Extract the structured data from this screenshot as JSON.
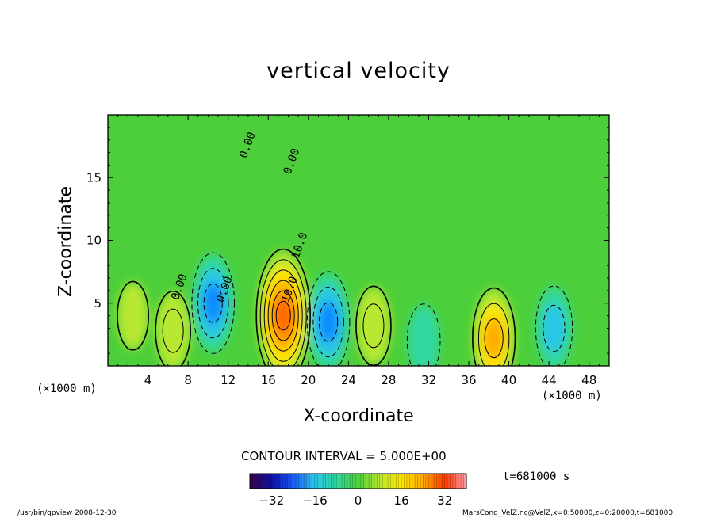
{
  "chart_data": {
    "type": "heatmap",
    "title": "vertical velocity",
    "xlabel": "X-coordinate",
    "ylabel": "Z-coordinate",
    "x_unit": "(×1000 m)",
    "xlim": [
      0,
      50
    ],
    "ylim": [
      0,
      20
    ],
    "x_ticks": [
      "4",
      "8",
      "12",
      "16",
      "20",
      "24",
      "28",
      "32",
      "36",
      "40",
      "44",
      "48"
    ],
    "y_ticks": [
      "5",
      "10",
      "15"
    ],
    "colorbar": {
      "ticks": [
        "−32",
        "−16",
        "0",
        "16",
        "32"
      ],
      "range": [
        -40,
        40
      ]
    },
    "contour_interval": "CONTOUR INTERVAL = 5.000E+00",
    "contour_labels": [
      "0.00",
      "0.00",
      "10.0",
      "10.0",
      "0.00",
      "0.00"
    ],
    "time": "t=681000 s",
    "features": [
      {
        "x": 17.5,
        "z": 4.0,
        "value": 30
      },
      {
        "x": 10.5,
        "z": 5.0,
        "value": -18
      },
      {
        "x": 22.0,
        "z": 3.5,
        "value": -18
      },
      {
        "x": 38.5,
        "z": 2.2,
        "value": 18
      },
      {
        "x": 26.5,
        "z": 3.2,
        "value": 10
      },
      {
        "x": 6.5,
        "z": 2.8,
        "value": 10
      },
      {
        "x": 44.5,
        "z": 3.0,
        "value": -12
      },
      {
        "x": 31.5,
        "z": 2.0,
        "value": -8
      },
      {
        "x": 2.5,
        "z": 4.0,
        "value": 6
      }
    ],
    "colors": {
      "background": "#4ccf3a",
      "positive": [
        "#b8e830",
        "#ffe600",
        "#ffaa00",
        "#ff6a00"
      ],
      "negative": [
        "#30d8a0",
        "#29c6e8",
        "#0a8cff",
        "#1a3aff"
      ]
    }
  },
  "footer": {
    "left": "/usr/bin/gpview    2008-12-30",
    "right": "MarsCond_VelZ.nc@VelZ,x=0:50000,z=0:20000,t=681000"
  }
}
